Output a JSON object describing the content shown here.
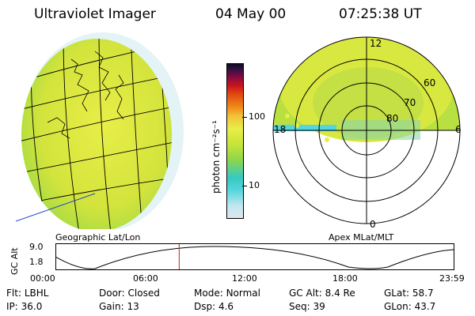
{
  "header": {
    "instrument": "Ultraviolet Imager",
    "date": "04 May 00",
    "time": "07:25:38 UT"
  },
  "colorbar": {
    "unit_label": "photon cm⁻²s⁻¹",
    "ticks": [
      {
        "value": 100,
        "label": "100"
      },
      {
        "value": 10,
        "label": "10"
      }
    ],
    "scale": "log",
    "colors": [
      "#dfe6ef",
      "#bfe8ee",
      "#55d5dc",
      "#35c9c3",
      "#8fd64a",
      "#c8e43a",
      "#e8ee48",
      "#f2c23a",
      "#f08a18",
      "#e34b10",
      "#c8141e",
      "#8a0b3e",
      "#3a1046",
      "#0d0d1e"
    ]
  },
  "left_panel": {
    "caption": "Geographic Lat/Lon"
  },
  "right_panel": {
    "caption": "Apex MLat/MLT",
    "mlt_labels": [
      "12",
      "18",
      "6",
      "0"
    ],
    "mlat_labels": [
      "60",
      "70",
      "80"
    ]
  },
  "altitude_plot": {
    "ylabel": "GC Alt",
    "y_ticks": [
      "9.0",
      "1.8"
    ],
    "x_ticks": [
      "00:00",
      "06:00",
      "12:00",
      "18:00",
      "23:59"
    ],
    "marker_time": "07:25:38",
    "marker_color": "#cc2222"
  },
  "status": {
    "row1": [
      {
        "label": "Flt:",
        "value": "LBHL"
      },
      {
        "label": "Door:",
        "value": "Closed"
      },
      {
        "label": "Mode:",
        "value": "Normal"
      },
      {
        "label": "GC Alt:",
        "value": "8.4 Re"
      },
      {
        "label": "GLat:",
        "value": "58.7"
      }
    ],
    "row2": [
      {
        "label": "IP:",
        "value": "36.0"
      },
      {
        "label": "Gain:",
        "value": "13"
      },
      {
        "label": "Dsp:",
        "value": "4.6"
      },
      {
        "label": "Seq:",
        "value": "39"
      },
      {
        "label": "GLon:",
        "value": "43.7"
      }
    ]
  }
}
